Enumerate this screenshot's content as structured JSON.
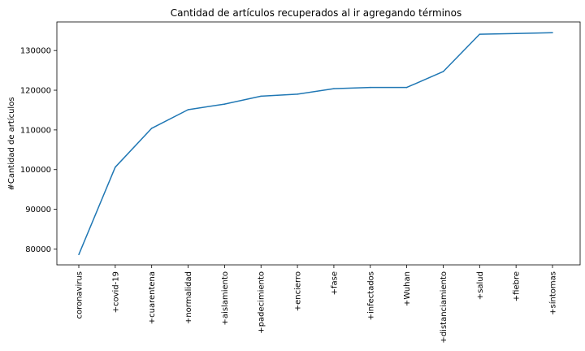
{
  "chart_data": {
    "type": "line",
    "title": "Cantidad de artículos recuperados al ir agregando términos",
    "xlabel": "",
    "ylabel": "#Cantidad de artículos",
    "categories": [
      "coronavirus",
      "+covid-19",
      "+cuarentena",
      "+normalidad",
      "+aislamiento",
      "+padecimiento",
      "+encierro",
      "+fase",
      "+infectados",
      "+Wuhan",
      "+distanciamiento",
      "+salud",
      "+fiebre",
      "+síntomas"
    ],
    "values": [
      78600,
      100600,
      110400,
      115100,
      116500,
      118500,
      119000,
      120400,
      120700,
      120700,
      124700,
      134100,
      134300,
      134500
    ],
    "yticks": [
      80000,
      90000,
      100000,
      110000,
      120000,
      130000
    ],
    "ylim": [
      76000,
      137200
    ],
    "grid": false,
    "line_color": "#1f77b4"
  }
}
